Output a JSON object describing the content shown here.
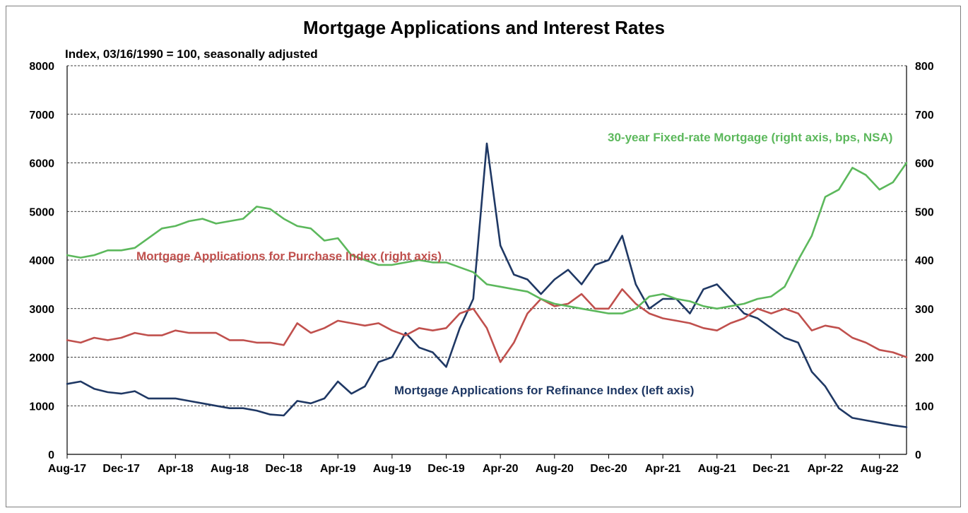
{
  "chart_data": {
    "type": "line",
    "title": "Mortgage Applications and Interest Rates",
    "subtitle": "Index, 03/16/1990 = 100, seasonally adjusted",
    "x_ticks": [
      "Aug-17",
      "Dec-17",
      "Apr-18",
      "Aug-18",
      "Dec-18",
      "Apr-19",
      "Aug-19",
      "Dec-19",
      "Apr-20",
      "Aug-20",
      "Dec-20",
      "Apr-21",
      "Aug-21",
      "Dec-21",
      "Apr-22",
      "Aug-22"
    ],
    "x_range": [
      "2017-08",
      "2022-10"
    ],
    "left_axis": {
      "range": [
        0,
        8000
      ],
      "ticks": [
        "0",
        "1000",
        "2000",
        "3000",
        "4000",
        "5000",
        "6000",
        "7000",
        "8000"
      ]
    },
    "right_axis": {
      "range": [
        0,
        800
      ],
      "ticks": [
        "0",
        "100",
        "200",
        "300",
        "400",
        "500",
        "600",
        "700",
        "800"
      ]
    },
    "grid": "horizontal dashed",
    "series": [
      {
        "name": "Mortgage Applications for Refinance Index (left axis)",
        "axis": "left",
        "color": "#1f3864",
        "x": [
          "2017-08",
          "2017-09",
          "2017-10",
          "2017-11",
          "2017-12",
          "2018-01",
          "2018-02",
          "2018-03",
          "2018-04",
          "2018-05",
          "2018-06",
          "2018-07",
          "2018-08",
          "2018-09",
          "2018-10",
          "2018-11",
          "2018-12",
          "2019-01",
          "2019-02",
          "2019-03",
          "2019-04",
          "2019-05",
          "2019-06",
          "2019-07",
          "2019-08",
          "2019-09",
          "2019-10",
          "2019-11",
          "2019-12",
          "2020-01",
          "2020-02",
          "2020-03",
          "2020-04",
          "2020-05",
          "2020-06",
          "2020-07",
          "2020-08",
          "2020-09",
          "2020-10",
          "2020-11",
          "2020-12",
          "2021-01",
          "2021-02",
          "2021-03",
          "2021-04",
          "2021-05",
          "2021-06",
          "2021-07",
          "2021-08",
          "2021-09",
          "2021-10",
          "2021-11",
          "2021-12",
          "2022-01",
          "2022-02",
          "2022-03",
          "2022-04",
          "2022-05",
          "2022-06",
          "2022-07",
          "2022-08",
          "2022-09",
          "2022-10"
        ],
        "values": [
          1450,
          1500,
          1350,
          1280,
          1250,
          1300,
          1150,
          1150,
          1150,
          1100,
          1050,
          1000,
          950,
          950,
          900,
          820,
          800,
          1100,
          1050,
          1150,
          1500,
          1250,
          1400,
          1900,
          2000,
          2500,
          2200,
          2100,
          1800,
          2600,
          3200,
          6400,
          4300,
          3700,
          3600,
          3300,
          3600,
          3800,
          3500,
          3900,
          4000,
          4500,
          3500,
          3000,
          3200,
          3200,
          2900,
          3400,
          3500,
          3200,
          2900,
          2800,
          2600,
          2400,
          2300,
          1700,
          1400,
          950,
          750,
          700,
          650,
          600,
          560
        ]
      },
      {
        "name": "Mortgage Applications for Purchase Index (right axis)",
        "axis": "right",
        "color": "#c0504d",
        "x": [
          "2017-08",
          "2017-09",
          "2017-10",
          "2017-11",
          "2017-12",
          "2018-01",
          "2018-02",
          "2018-03",
          "2018-04",
          "2018-05",
          "2018-06",
          "2018-07",
          "2018-08",
          "2018-09",
          "2018-10",
          "2018-11",
          "2018-12",
          "2019-01",
          "2019-02",
          "2019-03",
          "2019-04",
          "2019-05",
          "2019-06",
          "2019-07",
          "2019-08",
          "2019-09",
          "2019-10",
          "2019-11",
          "2019-12",
          "2020-01",
          "2020-02",
          "2020-03",
          "2020-04",
          "2020-05",
          "2020-06",
          "2020-07",
          "2020-08",
          "2020-09",
          "2020-10",
          "2020-11",
          "2020-12",
          "2021-01",
          "2021-02",
          "2021-03",
          "2021-04",
          "2021-05",
          "2021-06",
          "2021-07",
          "2021-08",
          "2021-09",
          "2021-10",
          "2021-11",
          "2021-12",
          "2022-01",
          "2022-02",
          "2022-03",
          "2022-04",
          "2022-05",
          "2022-06",
          "2022-07",
          "2022-08",
          "2022-09",
          "2022-10"
        ],
        "values": [
          235,
          230,
          240,
          235,
          240,
          250,
          245,
          245,
          255,
          250,
          250,
          250,
          235,
          235,
          230,
          230,
          225,
          270,
          250,
          260,
          275,
          270,
          265,
          270,
          255,
          245,
          260,
          255,
          260,
          290,
          300,
          260,
          190,
          230,
          290,
          320,
          305,
          310,
          330,
          300,
          300,
          340,
          310,
          290,
          280,
          275,
          270,
          260,
          255,
          270,
          280,
          300,
          290,
          300,
          290,
          255,
          265,
          260,
          240,
          230,
          215,
          210,
          200
        ]
      },
      {
        "name": "30-year Fixed-rate Mortgage (right axis, bps, NSA)",
        "axis": "right",
        "color": "#5cb85c",
        "x": [
          "2017-08",
          "2017-09",
          "2017-10",
          "2017-11",
          "2017-12",
          "2018-01",
          "2018-02",
          "2018-03",
          "2018-04",
          "2018-05",
          "2018-06",
          "2018-07",
          "2018-08",
          "2018-09",
          "2018-10",
          "2018-11",
          "2018-12",
          "2019-01",
          "2019-02",
          "2019-03",
          "2019-04",
          "2019-05",
          "2019-06",
          "2019-07",
          "2019-08",
          "2019-09",
          "2019-10",
          "2019-11",
          "2019-12",
          "2020-01",
          "2020-02",
          "2020-03",
          "2020-04",
          "2020-05",
          "2020-06",
          "2020-07",
          "2020-08",
          "2020-09",
          "2020-10",
          "2020-11",
          "2020-12",
          "2021-01",
          "2021-02",
          "2021-03",
          "2021-04",
          "2021-05",
          "2021-06",
          "2021-07",
          "2021-08",
          "2021-09",
          "2021-10",
          "2021-11",
          "2021-12",
          "2022-01",
          "2022-02",
          "2022-03",
          "2022-04",
          "2022-05",
          "2022-06",
          "2022-07",
          "2022-08",
          "2022-09",
          "2022-10"
        ],
        "values": [
          410,
          405,
          410,
          420,
          420,
          425,
          445,
          465,
          470,
          480,
          485,
          475,
          480,
          485,
          510,
          505,
          485,
          470,
          465,
          440,
          445,
          410,
          400,
          390,
          390,
          395,
          400,
          395,
          395,
          385,
          375,
          350,
          345,
          340,
          335,
          320,
          310,
          305,
          300,
          295,
          290,
          290,
          300,
          325,
          330,
          320,
          315,
          305,
          300,
          305,
          310,
          320,
          325,
          345,
          400,
          450,
          530,
          545,
          590,
          575,
          545,
          560,
          600
        ]
      }
    ],
    "annotations": [
      "30-year Fixed-rate Mortgage (right axis, bps, NSA)",
      "Mortgage Applications for Purchase Index (right axis)",
      "Mortgage Applications for Refinance Index (left axis)"
    ]
  }
}
